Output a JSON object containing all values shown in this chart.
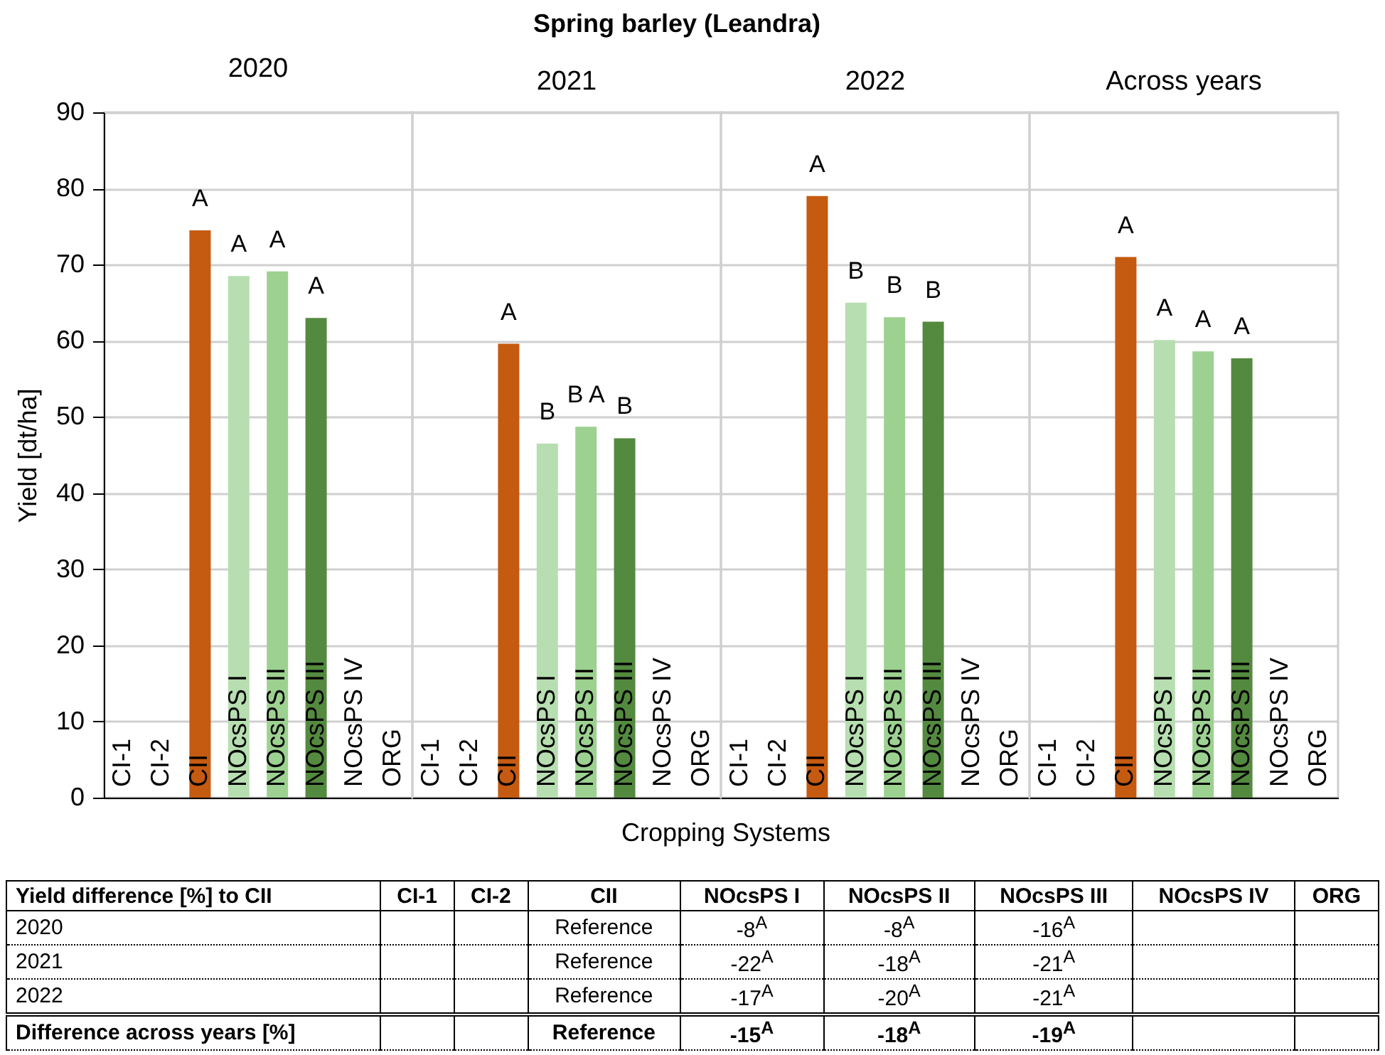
{
  "chart_data": [
    {
      "type": "bar",
      "title": "2020",
      "ylabel": "Yield [dt/ha]",
      "categories": [
        "CI-1",
        "CI-2",
        "CII",
        "NOcsPS I",
        "NOcsPS II",
        "NOcsPS III",
        "NOcsPS IV",
        "ORG"
      ],
      "values": [
        null,
        null,
        74.5,
        68.5,
        69.1,
        63,
        null,
        null
      ],
      "colors": [
        null,
        null,
        "#c55a11",
        "#b7deb0",
        "#9dd191",
        "#548a3f",
        null,
        null
      ],
      "ylim": [
        0,
        90
      ],
      "yticks": [
        0,
        10,
        20,
        30,
        40,
        50,
        60,
        70,
        80,
        90
      ],
      "grid": "y",
      "annotations": [
        "Spring barley (Leandra)",
        {
          "text": "A",
          "x": "CII",
          "y": 74.5
        },
        {
          "text": "A",
          "x": "NOcsPS I",
          "y": 68.5
        },
        {
          "text": "A",
          "x": "NOcsPS II",
          "y": 69.1
        },
        {
          "text": "A",
          "x": "NOcsPS III",
          "y": 63
        }
      ]
    },
    {
      "type": "bar",
      "title": "2021",
      "xlabel": "Cropping Systems",
      "categories": [
        "CI-1",
        "CI-2",
        "CII",
        "NOcsPS I",
        "NOcsPS II",
        "NOcsPS III",
        "NOcsPS IV",
        "ORG"
      ],
      "values": [
        null,
        null,
        59.6,
        46.5,
        48.7,
        47.2,
        null,
        null
      ],
      "colors": [
        null,
        null,
        "#c55a11",
        "#b7deb0",
        "#9dd191",
        "#548a3f",
        null,
        null
      ],
      "ylim": [
        0,
        90
      ],
      "yticks": [
        0,
        10,
        20,
        30,
        40,
        50,
        60,
        70,
        80,
        90
      ],
      "grid": "y",
      "tick_labels": "x",
      "annotations": [
        {
          "text": "A",
          "x": "CII",
          "y": 59.6
        },
        {
          "text": "B",
          "x": "NOcsPS I",
          "y": 46.5
        },
        {
          "text": "B A",
          "x": "NOcsPS II",
          "y": 48.7
        },
        {
          "text": "B",
          "x": "NOcsPS III",
          "y": 47.2
        }
      ]
    },
    {
      "type": "bar",
      "title": "2022",
      "categories": [
        "CI-1",
        "CI-2",
        "CII",
        "NOcsPS I",
        "NOcsPS II",
        "NOcsPS III",
        "NOcsPS IV",
        "ORG"
      ],
      "values": [
        null,
        null,
        79,
        65,
        63.1,
        62.5,
        null,
        null
      ],
      "colors": [
        null,
        null,
        "#c55a11",
        "#b7deb0",
        "#9dd191",
        "#548a3f",
        null,
        null
      ],
      "ylim": [
        0,
        90
      ],
      "yticks": [
        0,
        10,
        20,
        30,
        40,
        50,
        60,
        70,
        80,
        90
      ],
      "grid": "y",
      "tick_labels": "x",
      "annotations": [
        {
          "text": "A",
          "x": "CII",
          "y": 79
        },
        {
          "text": "B",
          "x": "NOcsPS I",
          "y": 65
        },
        {
          "text": "B",
          "x": "NOcsPS II",
          "y": 63.1
        },
        {
          "text": "B",
          "x": "NOcsPS III",
          "y": 62.5
        }
      ]
    },
    {
      "type": "bar",
      "title": "Across years",
      "categories": [
        "CI-1",
        "CI-2",
        "CII",
        "NOcsPS I",
        "NOcsPS II",
        "NOcsPS III",
        "NOcsPS IV",
        "ORG"
      ],
      "values": [
        null,
        null,
        71,
        60.1,
        58.6,
        57.7,
        null,
        null
      ],
      "colors": [
        null,
        null,
        "#c55a11",
        "#b7deb0",
        "#9dd191",
        "#548a3f",
        null,
        null
      ],
      "ylim": [
        0,
        90
      ],
      "yticks": [
        0,
        10,
        20,
        30,
        40,
        50,
        60,
        70,
        80,
        90
      ],
      "grid": "y",
      "tick_labels": "x",
      "annotations": [
        {
          "text": "A",
          "x": "CII",
          "y": 71
        },
        {
          "text": "A",
          "x": "NOcsPS I",
          "y": 60.1
        },
        {
          "text": "A",
          "x": "NOcsPS II",
          "y": 58.6
        },
        {
          "text": "A",
          "x": "NOcsPS III",
          "y": 57.7
        }
      ]
    },
    {
      "type": "other",
      "annotations": [
        "Yield difference [%] to CII",
        "CI-1",
        "CI-2",
        "CII",
        "NOcsPS I",
        "NOcsPS II",
        "NOcsPS III",
        "NOcsPS IV",
        "ORG",
        "2020",
        null,
        null,
        "Reference",
        "-8$^{A}$",
        "-8$^{A}$",
        "-16$^{A}$",
        null,
        null,
        "2021",
        null,
        null,
        "Reference",
        "-22$^{A}$",
        "-18$^{A}$",
        "-21$^{A}$",
        null,
        null,
        "2022",
        null,
        null,
        "Reference",
        "-17$^{A}$",
        "-20$^{A}$",
        "-21$^{A}$",
        null,
        null,
        "Difference across years [%]",
        null,
        null,
        "Reference",
        "-15$^{A}$",
        "-18$^{A}$",
        "-19$^{A}$",
        null,
        null
      ]
    }
  ]
}
